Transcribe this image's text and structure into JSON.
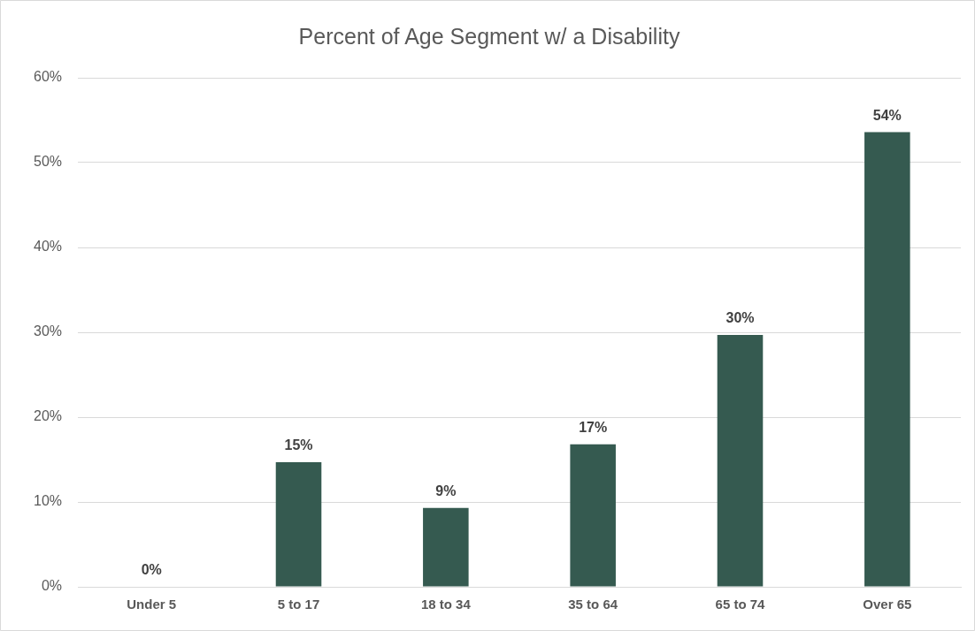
{
  "chart_data": {
    "type": "bar",
    "title": "Percent of Age Segment w/ a Disability",
    "categories": [
      "Under 5",
      "5 to 17",
      "18 to 34",
      "35 to 64",
      "65 to 74",
      "Over 65"
    ],
    "values": [
      0,
      14.7,
      9.3,
      16.8,
      29.7,
      53.6
    ],
    "value_labels": [
      "0%",
      "15%",
      "9%",
      "17%",
      "30%",
      "54%"
    ],
    "color": "#355a50",
    "ylim": [
      0,
      60
    ],
    "yticks": [
      {
        "value": 0,
        "label": "0%"
      },
      {
        "value": 10,
        "label": "10%"
      },
      {
        "value": 20,
        "label": "20%"
      },
      {
        "value": 30,
        "label": "30%"
      },
      {
        "value": 40,
        "label": "40%"
      },
      {
        "value": 50,
        "label": "50%"
      },
      {
        "value": 60,
        "label": "60%"
      }
    ],
    "grid": "y",
    "legend": false
  }
}
